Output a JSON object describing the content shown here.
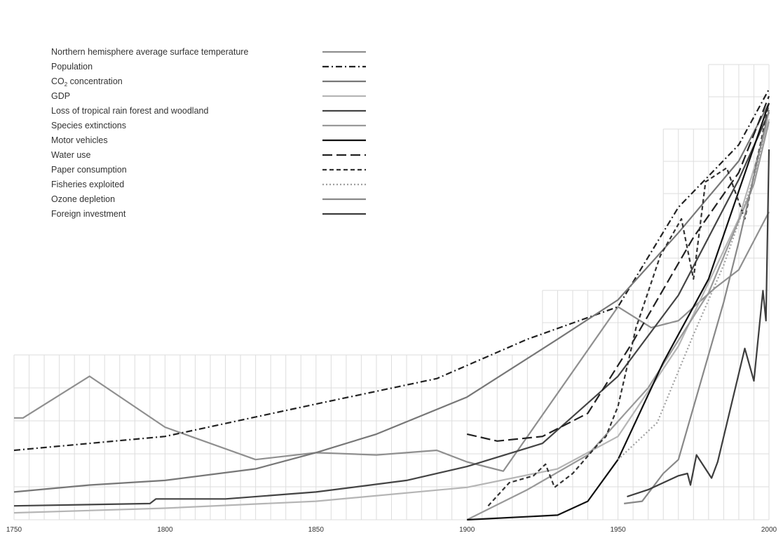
{
  "chart_data": {
    "type": "line",
    "title": "",
    "xlabel": "",
    "ylabel": "",
    "xlim": [
      1750,
      2000
    ],
    "x_ticks": [
      "1750",
      "1800",
      "1850",
      "1900",
      "1950",
      "2000"
    ],
    "grid": true,
    "legend_position": "top-left",
    "series": [
      {
        "name": "Northern hemisphere average surface temperature",
        "color": "#8f8f8f",
        "dash": "solid",
        "points": [
          [
            1750,
            0.44
          ],
          [
            1753,
            0.44
          ],
          [
            1775,
            0.62
          ],
          [
            1800,
            0.4
          ],
          [
            1830,
            0.26
          ],
          [
            1850,
            0.29
          ],
          [
            1870,
            0.28
          ],
          [
            1890,
            0.3
          ],
          [
            1900,
            0.25
          ],
          [
            1912,
            0.21
          ],
          [
            1950,
            0.92
          ],
          [
            1961,
            0.83
          ],
          [
            1970,
            0.86
          ],
          [
            1982,
            1.0
          ],
          [
            1990,
            1.08
          ],
          [
            2000,
            1.33
          ]
        ]
      },
      {
        "name": "Population",
        "color": "#222222",
        "dash": "dashdot",
        "points": [
          [
            1750,
            0.3
          ],
          [
            1800,
            0.36
          ],
          [
            1850,
            0.5
          ],
          [
            1890,
            0.61
          ],
          [
            1920,
            0.78
          ],
          [
            1950,
            0.92
          ],
          [
            1970,
            1.35
          ],
          [
            1990,
            1.62
          ],
          [
            2000,
            1.86
          ]
        ]
      },
      {
        "name": "CO2 concentration",
        "color": "#777777",
        "dash": "solid",
        "points": [
          [
            1750,
            0.12
          ],
          [
            1775,
            0.15
          ],
          [
            1800,
            0.17
          ],
          [
            1830,
            0.22
          ],
          [
            1850,
            0.29
          ],
          [
            1870,
            0.37
          ],
          [
            1900,
            0.53
          ],
          [
            1930,
            0.78
          ],
          [
            1950,
            0.95
          ],
          [
            1970,
            1.24
          ],
          [
            1990,
            1.55
          ],
          [
            2000,
            1.8
          ]
        ]
      },
      {
        "name": "GDP",
        "color": "#b5b5b5",
        "dash": "solid",
        "points": [
          [
            1750,
            0.03
          ],
          [
            1800,
            0.05
          ],
          [
            1850,
            0.08
          ],
          [
            1900,
            0.14
          ],
          [
            1930,
            0.22
          ],
          [
            1950,
            0.36
          ],
          [
            1970,
            0.75
          ],
          [
            1990,
            1.3
          ],
          [
            2000,
            1.73
          ]
        ]
      },
      {
        "name": "Loss of tropical rain forest and woodland",
        "color": "#444444",
        "dash": "solid",
        "points": [
          [
            1750,
            0.06
          ],
          [
            1795,
            0.07
          ],
          [
            1797,
            0.09
          ],
          [
            1820,
            0.09
          ],
          [
            1850,
            0.12
          ],
          [
            1880,
            0.17
          ],
          [
            1900,
            0.23
          ],
          [
            1925,
            0.33
          ],
          [
            1950,
            0.62
          ],
          [
            1970,
            0.97
          ],
          [
            1990,
            1.47
          ],
          [
            2000,
            1.76
          ]
        ]
      },
      {
        "name": "Species extinctions",
        "color": "#999999",
        "dash": "solid",
        "points": [
          [
            1900,
            0.0
          ],
          [
            1920,
            0.13
          ],
          [
            1940,
            0.28
          ],
          [
            1960,
            0.57
          ],
          [
            1980,
            0.98
          ],
          [
            1995,
            1.45
          ],
          [
            2000,
            1.72
          ]
        ]
      },
      {
        "name": "Motor vehicles",
        "color": "#111111",
        "dash": "solid",
        "points": [
          [
            1900,
            0.0
          ],
          [
            1930,
            0.02
          ],
          [
            1940,
            0.08
          ],
          [
            1950,
            0.26
          ],
          [
            1965,
            0.68
          ],
          [
            1980,
            1.04
          ],
          [
            2000,
            1.8
          ]
        ]
      },
      {
        "name": "Water use",
        "color": "#222222",
        "dash": "longdash",
        "points": [
          [
            1900,
            0.37
          ],
          [
            1910,
            0.34
          ],
          [
            1925,
            0.36
          ],
          [
            1940,
            0.46
          ],
          [
            1955,
            0.77
          ],
          [
            1975,
            1.22
          ],
          [
            1990,
            1.5
          ],
          [
            2000,
            1.83
          ]
        ]
      },
      {
        "name": "Paper consumption",
        "color": "#333333",
        "dash": "dash",
        "points": [
          [
            1907,
            0.06
          ],
          [
            1914,
            0.16
          ],
          [
            1922,
            0.19
          ],
          [
            1926,
            0.24
          ],
          [
            1929,
            0.14
          ],
          [
            1935,
            0.2
          ],
          [
            1943,
            0.32
          ],
          [
            1946,
            0.36
          ],
          [
            1950,
            0.49
          ],
          [
            1956,
            0.83
          ],
          [
            1964,
            1.14
          ],
          [
            1971,
            1.3
          ],
          [
            1975,
            1.04
          ],
          [
            1979,
            1.46
          ],
          [
            1986,
            1.52
          ],
          [
            1992,
            1.3
          ],
          [
            2000,
            1.8
          ]
        ]
      },
      {
        "name": "Fisheries exploited",
        "color": "#a0a0a0",
        "dash": "dot",
        "points": [
          [
            1950,
            0.26
          ],
          [
            1963,
            0.42
          ],
          [
            1975,
            0.8
          ],
          [
            1985,
            1.1
          ],
          [
            1992,
            1.36
          ],
          [
            1995,
            1.48
          ],
          [
            2000,
            1.72
          ]
        ]
      },
      {
        "name": "Ozone depletion",
        "color": "#888888",
        "dash": "solid",
        "points": [
          [
            1952,
            0.07
          ],
          [
            1958,
            0.08
          ],
          [
            1965,
            0.2
          ],
          [
            1970,
            0.26
          ],
          [
            1985,
            0.94
          ],
          [
            1990,
            1.2
          ],
          [
            2000,
            1.77
          ]
        ]
      },
      {
        "name": "Foreign investment",
        "color": "#3d3d3d",
        "dash": "solid",
        "points": [
          [
            1953,
            0.1
          ],
          [
            1960,
            0.13
          ],
          [
            1970,
            0.19
          ],
          [
            1973,
            0.2
          ],
          [
            1974,
            0.15
          ],
          [
            1976,
            0.28
          ],
          [
            1981,
            0.18
          ],
          [
            1983,
            0.25
          ],
          [
            1992,
            0.74
          ],
          [
            1995,
            0.6
          ],
          [
            1998,
            0.99
          ],
          [
            1999,
            0.86
          ],
          [
            2000,
            1.6
          ]
        ]
      }
    ]
  }
}
